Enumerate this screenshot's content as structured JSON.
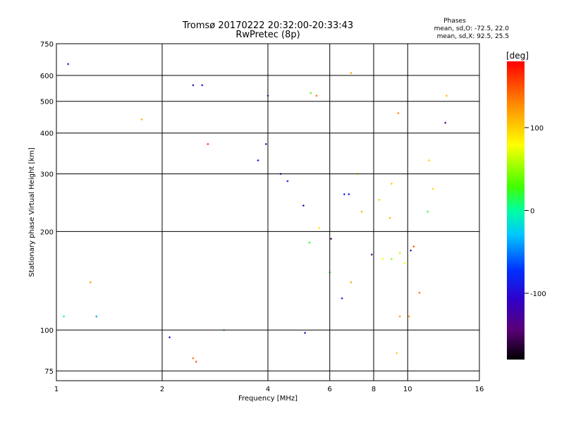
{
  "chart_data": {
    "type": "scatter",
    "title": "Tromsø 20170222 20:32:00-20:33:43",
    "subtitle": "RwPretec (8p)",
    "xlabel": "Frequency [MHz]",
    "ylabel": "Stationary phase Virtual Height [km]",
    "x_scale": "log",
    "y_scale": "log",
    "xlim": [
      1,
      16
    ],
    "ylim": [
      70,
      750
    ],
    "x_ticks": [
      1,
      2,
      4,
      6,
      8,
      10,
      16
    ],
    "y_ticks": [
      75,
      100,
      200,
      300,
      400,
      500,
      600,
      750
    ],
    "grid": true,
    "phase_info": {
      "title": "Phases",
      "line_o": "mean, sd,O: -72.5, 22.0",
      "line_x": "mean, sd,X:  92.5, 25.5"
    },
    "colorbar": {
      "label": "[deg]",
      "ticks": [
        100,
        0,
        -100
      ],
      "range": [
        -180,
        180
      ],
      "colormap": "rainbow (black-purple-blue-cyan-green-yellow-red)"
    },
    "points": [
      [
        1.08,
        650,
        -90
      ],
      [
        1.05,
        110,
        0
      ],
      [
        1.25,
        140,
        120
      ],
      [
        1.3,
        110,
        -40
      ],
      [
        1.75,
        440,
        110
      ],
      [
        2.45,
        560,
        -120
      ],
      [
        2.6,
        560,
        -100
      ],
      [
        2.7,
        370,
        160
      ],
      [
        2.45,
        82,
        140
      ],
      [
        2.5,
        80,
        150
      ],
      [
        2.1,
        95,
        -100
      ],
      [
        3.0,
        100,
        20
      ],
      [
        5.1,
        98,
        -120
      ],
      [
        5.3,
        530,
        30
      ],
      [
        5.5,
        520,
        140
      ],
      [
        4.0,
        520,
        -90
      ],
      [
        6.9,
        610,
        120
      ],
      [
        9.4,
        460,
        130
      ],
      [
        12.9,
        520,
        110
      ],
      [
        12.8,
        430,
        -140
      ],
      [
        11.5,
        330,
        100
      ],
      [
        11.8,
        270,
        100
      ],
      [
        11.4,
        230,
        20
      ],
      [
        10.4,
        180,
        150
      ],
      [
        10.8,
        130,
        140
      ],
      [
        9.5,
        110,
        120
      ],
      [
        9.3,
        85,
        100
      ],
      [
        10.1,
        110,
        120
      ],
      [
        9.8,
        160,
        80
      ],
      [
        10.2,
        175,
        -120
      ],
      [
        7.2,
        300,
        80
      ],
      [
        9.0,
        280,
        100
      ],
      [
        4.35,
        300,
        -80
      ],
      [
        3.75,
        330,
        -100
      ],
      [
        3.95,
        370,
        -100
      ],
      [
        4.55,
        285,
        -90
      ],
      [
        5.05,
        240,
        -110
      ],
      [
        5.25,
        185,
        20
      ],
      [
        5.6,
        205,
        90
      ],
      [
        6.05,
        190,
        -150
      ],
      [
        6.6,
        260,
        -80
      ],
      [
        6.8,
        260,
        -90
      ],
      [
        7.4,
        230,
        110
      ],
      [
        8.3,
        250,
        100
      ],
      [
        8.9,
        220,
        110
      ],
      [
        7.9,
        170,
        -130
      ],
      [
        8.5,
        165,
        80
      ],
      [
        9.0,
        165,
        50
      ],
      [
        9.5,
        172,
        60
      ],
      [
        6.5,
        125,
        -90
      ],
      [
        6.9,
        140,
        120
      ],
      [
        6.0,
        150,
        20
      ]
    ]
  }
}
